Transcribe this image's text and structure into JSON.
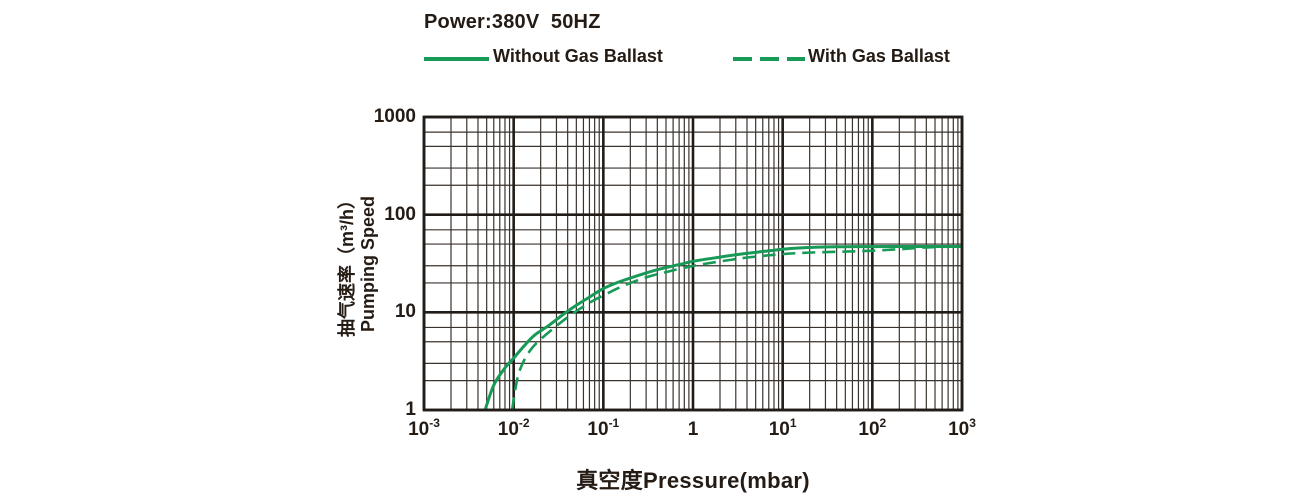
{
  "header": {
    "power": "Power:380V  50HZ"
  },
  "legend": {
    "items": [
      {
        "label": "Without Gas Ballast",
        "style": "solid"
      },
      {
        "label": "With Gas Ballast",
        "style": "dashed"
      }
    ]
  },
  "colors": {
    "curve_green": "#169a56",
    "text": "#241b15",
    "grid_minor": "#3a332e",
    "grid_major": "#211c18"
  },
  "chart_data": {
    "type": "line",
    "x_scale": "log",
    "y_scale": "log",
    "xlim": [
      0.001,
      1000
    ],
    "ylim": [
      1,
      1000
    ],
    "xlabel": "真空度Pressure(mbar)",
    "ylabel_line1": "抽气速率（m³/h）",
    "ylabel_line2": "Pumping Speed",
    "x_ticks": [
      {
        "mantissa": "10",
        "exp": "-3"
      },
      {
        "mantissa": "10",
        "exp": "-2"
      },
      {
        "mantissa": "10",
        "exp": "-1"
      },
      {
        "mantissa": "1",
        "exp": ""
      },
      {
        "mantissa": "10",
        "exp": "1"
      },
      {
        "mantissa": "10",
        "exp": "2"
      },
      {
        "mantissa": "10",
        "exp": "3"
      }
    ],
    "y_ticks": [
      "1000",
      "100",
      "10",
      "1"
    ],
    "grid": {
      "x_minors": [
        2,
        3,
        4,
        5,
        6,
        7,
        8,
        9
      ],
      "y_minors": [
        2,
        3,
        5,
        7
      ]
    },
    "plateau_speed_m3h": 47,
    "series": [
      {
        "name": "Without Gas Ballast",
        "dash": "none",
        "points": [
          [
            0.0048,
            1
          ],
          [
            0.006,
            1.8
          ],
          [
            0.008,
            2.7
          ],
          [
            0.01,
            3.4
          ],
          [
            0.013,
            4.5
          ],
          [
            0.017,
            5.8
          ],
          [
            0.025,
            7.4
          ],
          [
            0.035,
            9.4
          ],
          [
            0.05,
            11.8
          ],
          [
            0.07,
            14.3
          ],
          [
            0.1,
            17.5
          ],
          [
            0.15,
            20.5
          ],
          [
            0.25,
            24
          ],
          [
            0.4,
            27.3
          ],
          [
            0.7,
            30.8
          ],
          [
            1,
            33.3
          ],
          [
            2,
            36.8
          ],
          [
            3.5,
            39.6
          ],
          [
            6,
            42
          ],
          [
            10,
            44.3
          ],
          [
            15,
            45.6
          ],
          [
            25,
            46.5
          ],
          [
            50,
            47
          ],
          [
            100,
            47.1
          ],
          [
            300,
            47.2
          ],
          [
            1000,
            47.2
          ]
        ]
      },
      {
        "name": "With Gas Ballast",
        "dash": "13 7",
        "points": [
          [
            0.0096,
            1
          ],
          [
            0.011,
            2.1
          ],
          [
            0.013,
            3.2
          ],
          [
            0.016,
            4.3
          ],
          [
            0.02,
            5.3
          ],
          [
            0.027,
            6.7
          ],
          [
            0.038,
            8.6
          ],
          [
            0.055,
            10.9
          ],
          [
            0.08,
            13.4
          ],
          [
            0.12,
            16.2
          ],
          [
            0.18,
            19.2
          ],
          [
            0.3,
            22.8
          ],
          [
            0.5,
            25.8
          ],
          [
            0.8,
            28.6
          ],
          [
            1.2,
            30.8
          ],
          [
            2,
            33.2
          ],
          [
            3.5,
            35.8
          ],
          [
            6,
            37.8
          ],
          [
            10,
            39.5
          ],
          [
            15,
            40.4
          ],
          [
            25,
            41.2
          ],
          [
            50,
            41.9
          ],
          [
            100,
            42.8
          ],
          [
            200,
            44.3
          ],
          [
            400,
            46.2
          ],
          [
            700,
            47
          ],
          [
            1000,
            47.2
          ]
        ]
      }
    ]
  }
}
